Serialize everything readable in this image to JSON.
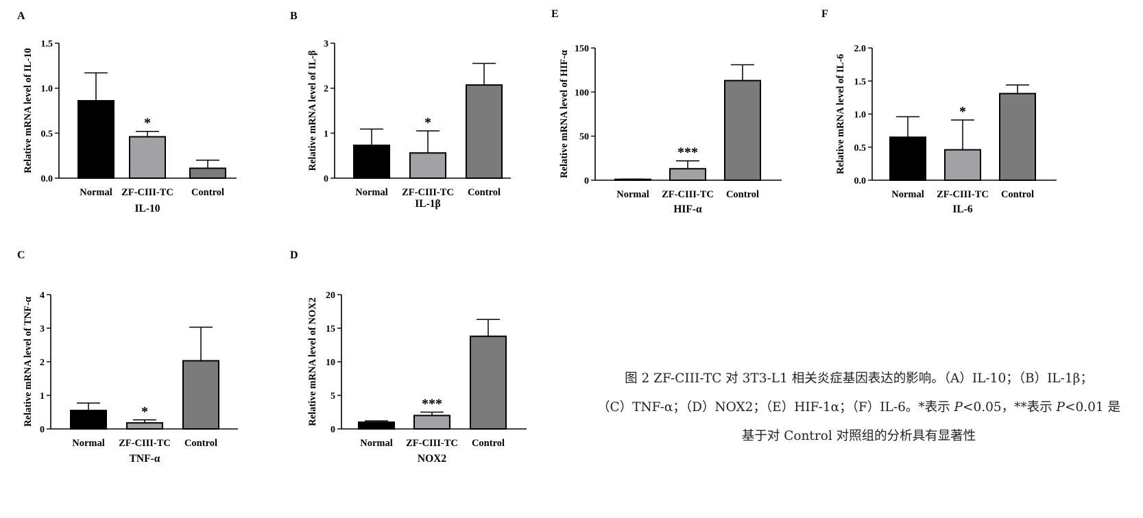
{
  "chart_data": [
    {
      "panel": "A",
      "type": "bar",
      "title": "IL-10",
      "xlabel": "IL-10",
      "ylabel": "Relative mRNA level of IL-10",
      "categories": [
        "Normal",
        "ZF-CIII-TC",
        "Control"
      ],
      "values": [
        0.86,
        0.46,
        0.11
      ],
      "errors": [
        0.31,
        0.06,
        0.09
      ],
      "significance": [
        "",
        "*",
        ""
      ],
      "ylim": [
        0,
        1.5
      ],
      "yticks": [
        "0.0",
        "0.5",
        "1.0",
        "1.5"
      ],
      "grid": false,
      "legend": "none"
    },
    {
      "panel": "B",
      "type": "bar",
      "title": "IL-1β",
      "xlabel": "IL-1β",
      "ylabel": "Relative mRNA level of IL-β",
      "categories": [
        "Normal",
        "ZF-CIII-TC",
        "Control"
      ],
      "values": [
        0.73,
        0.56,
        2.07
      ],
      "errors": [
        0.36,
        0.49,
        0.48
      ],
      "significance": [
        "",
        "*",
        ""
      ],
      "ylim": [
        0,
        3
      ],
      "yticks": [
        "0",
        "1",
        "2",
        "3"
      ],
      "grid": false,
      "legend": "none"
    },
    {
      "panel": "E",
      "type": "bar",
      "title": "HIF-α",
      "xlabel": "HIF-α",
      "ylabel": "Relative mRNA level of HIF-α",
      "categories": [
        "Normal",
        "ZF-CIII-TC",
        "Control"
      ],
      "values": [
        1.0,
        13,
        113
      ],
      "errors": [
        0.3,
        9,
        18
      ],
      "significance": [
        "",
        "***",
        ""
      ],
      "ylim": [
        0,
        150
      ],
      "yticks": [
        "0",
        "50",
        "100",
        "150"
      ],
      "grid": false,
      "legend": "none"
    },
    {
      "panel": "F",
      "type": "bar",
      "title": "IL-6",
      "xlabel": "IL-6",
      "ylabel": "Relative mRNA level of IL-6",
      "categories": [
        "Normal",
        "ZF-CIII-TC",
        "Control"
      ],
      "values": [
        0.65,
        0.46,
        1.31
      ],
      "errors": [
        0.31,
        0.45,
        0.13
      ],
      "significance": [
        "",
        "*",
        ""
      ],
      "ylim": [
        0,
        2.0
      ],
      "yticks": [
        "0.0",
        "0.5",
        "1.0",
        "1.5",
        "2.0"
      ],
      "grid": false,
      "legend": "none"
    },
    {
      "panel": "C",
      "type": "bar",
      "title": "TNF-α",
      "xlabel": "TNF-α",
      "ylabel": "Relative mRNA level of TNF-α",
      "categories": [
        "Normal",
        "ZF-CIII-TC",
        "Control"
      ],
      "values": [
        0.55,
        0.18,
        2.03
      ],
      "errors": [
        0.22,
        0.09,
        1.0
      ],
      "significance": [
        "",
        "*",
        ""
      ],
      "ylim": [
        0,
        4
      ],
      "yticks": [
        "0",
        "1",
        "2",
        "3",
        "4"
      ],
      "grid": false,
      "legend": "none"
    },
    {
      "panel": "D",
      "type": "bar",
      "title": "NOX2",
      "xlabel": "NOX2",
      "ylabel": "Relative mRNA level of NOX2",
      "categories": [
        "Normal",
        "ZF-CIII-TC",
        "Control"
      ],
      "values": [
        1.0,
        2.0,
        13.8
      ],
      "errors": [
        0.2,
        0.5,
        2.5
      ],
      "significance": [
        "",
        "***",
        ""
      ],
      "ylim": [
        0,
        20
      ],
      "yticks": [
        "0",
        "5",
        "10",
        "15",
        "20"
      ],
      "grid": false,
      "legend": "none"
    }
  ],
  "colors": {
    "Normal": "#000000",
    "ZF-CIII-TC": "#a2a2a6",
    "Control": "#7b7b7b",
    "axis": "#000000"
  },
  "caption": {
    "line1": "图 2 ZF-CIII-TC 对 3T3-L1 相关炎症基因表达的影响。（A）IL-10；（B）IL-1β；",
    "line2_a": "（C）TNF-α；（D）NOX2；（E）HIF-1α；（F）IL-6。*表示 ",
    "line2_p1": "P",
    "line2_b": "<0.05，**表示 ",
    "line2_p2": "P",
    "line2_c": "<0.01 是",
    "line3": "基于对 Control 对照组的分析具有显著性"
  }
}
